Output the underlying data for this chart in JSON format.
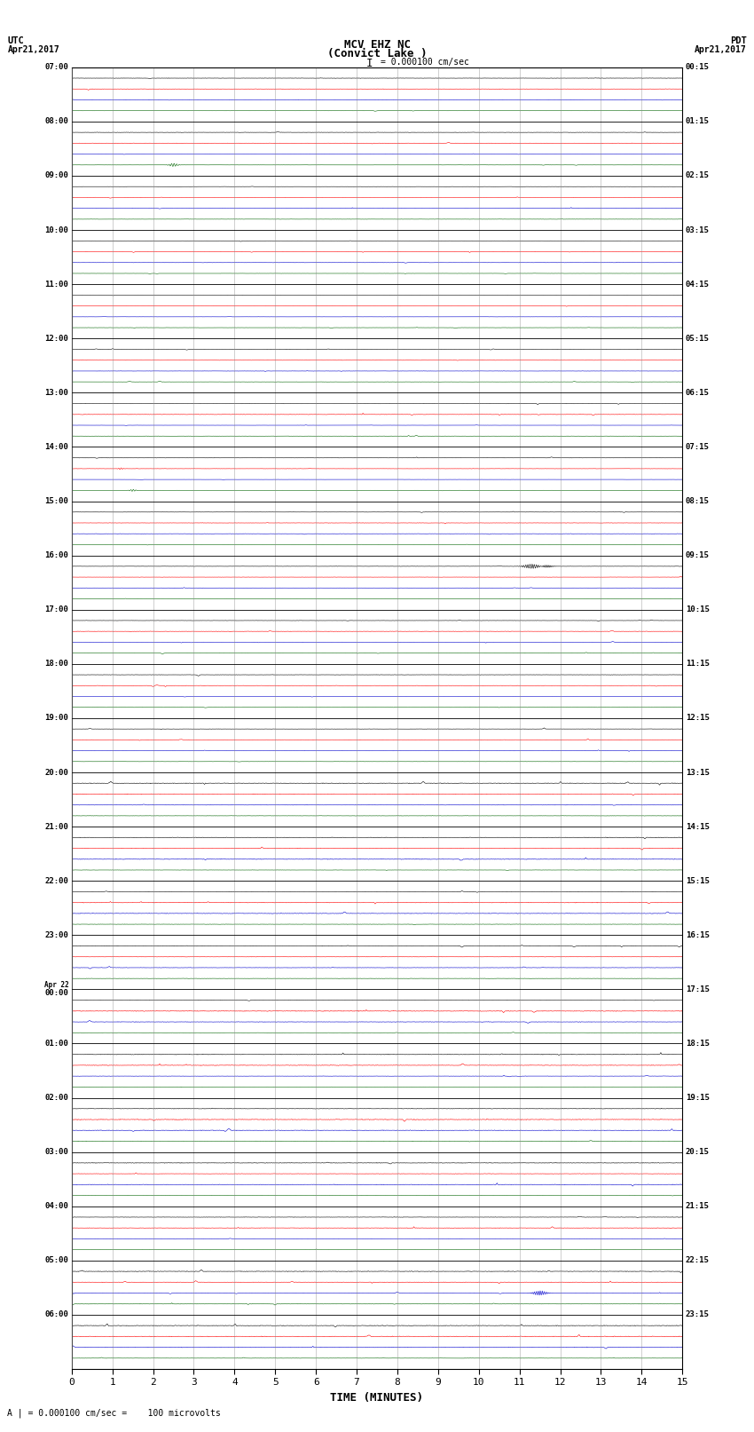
{
  "title_line1": "MCV EHZ NC",
  "title_line2": "(Convict Lake )",
  "title_line3": "I = 0.000100 cm/sec",
  "utc_label": "UTC",
  "utc_date": "Apr21,2017",
  "pdt_label": "PDT",
  "pdt_date": "Apr21,2017",
  "footer": "A | = 0.000100 cm/sec =    100 microvolts",
  "xlabel": "TIME (MINUTES)",
  "left_times": [
    "07:00",
    "08:00",
    "09:00",
    "10:00",
    "11:00",
    "12:00",
    "13:00",
    "14:00",
    "15:00",
    "16:00",
    "17:00",
    "18:00",
    "19:00",
    "20:00",
    "21:00",
    "22:00",
    "23:00",
    "Apr 22\n00:00",
    "01:00",
    "02:00",
    "03:00",
    "04:00",
    "05:00",
    "06:00"
  ],
  "right_times": [
    "00:15",
    "01:15",
    "02:15",
    "03:15",
    "04:15",
    "05:15",
    "06:15",
    "07:15",
    "08:15",
    "09:15",
    "10:15",
    "11:15",
    "12:15",
    "13:15",
    "14:15",
    "15:15",
    "16:15",
    "17:15",
    "18:15",
    "19:15",
    "20:15",
    "21:15",
    "22:15",
    "23:15"
  ],
  "n_rows": 24,
  "n_minutes": 15,
  "background_color": "#ffffff",
  "trace_colors": [
    "#000000",
    "#ff0000",
    "#0000cc",
    "#006400"
  ],
  "n_subtraces": 4,
  "noise_scale": 0.055,
  "spike_row": 9,
  "spike_minute": 11.3,
  "spike_amplitude": 0.35,
  "green_spike_row": 1,
  "green_spike_minute": 2.5,
  "green_spike_amplitude": 0.25,
  "green_spike2_row": 7,
  "green_spike2_minute": 1.5,
  "green_spike2_amplitude": 0.15,
  "red_spike_row": 7,
  "red_spike_minute": 1.2,
  "red_spike_amplitude": 0.12,
  "blue_spike_row": 22,
  "blue_spike_minute": 11.5,
  "blue_spike_amplitude": 0.35
}
